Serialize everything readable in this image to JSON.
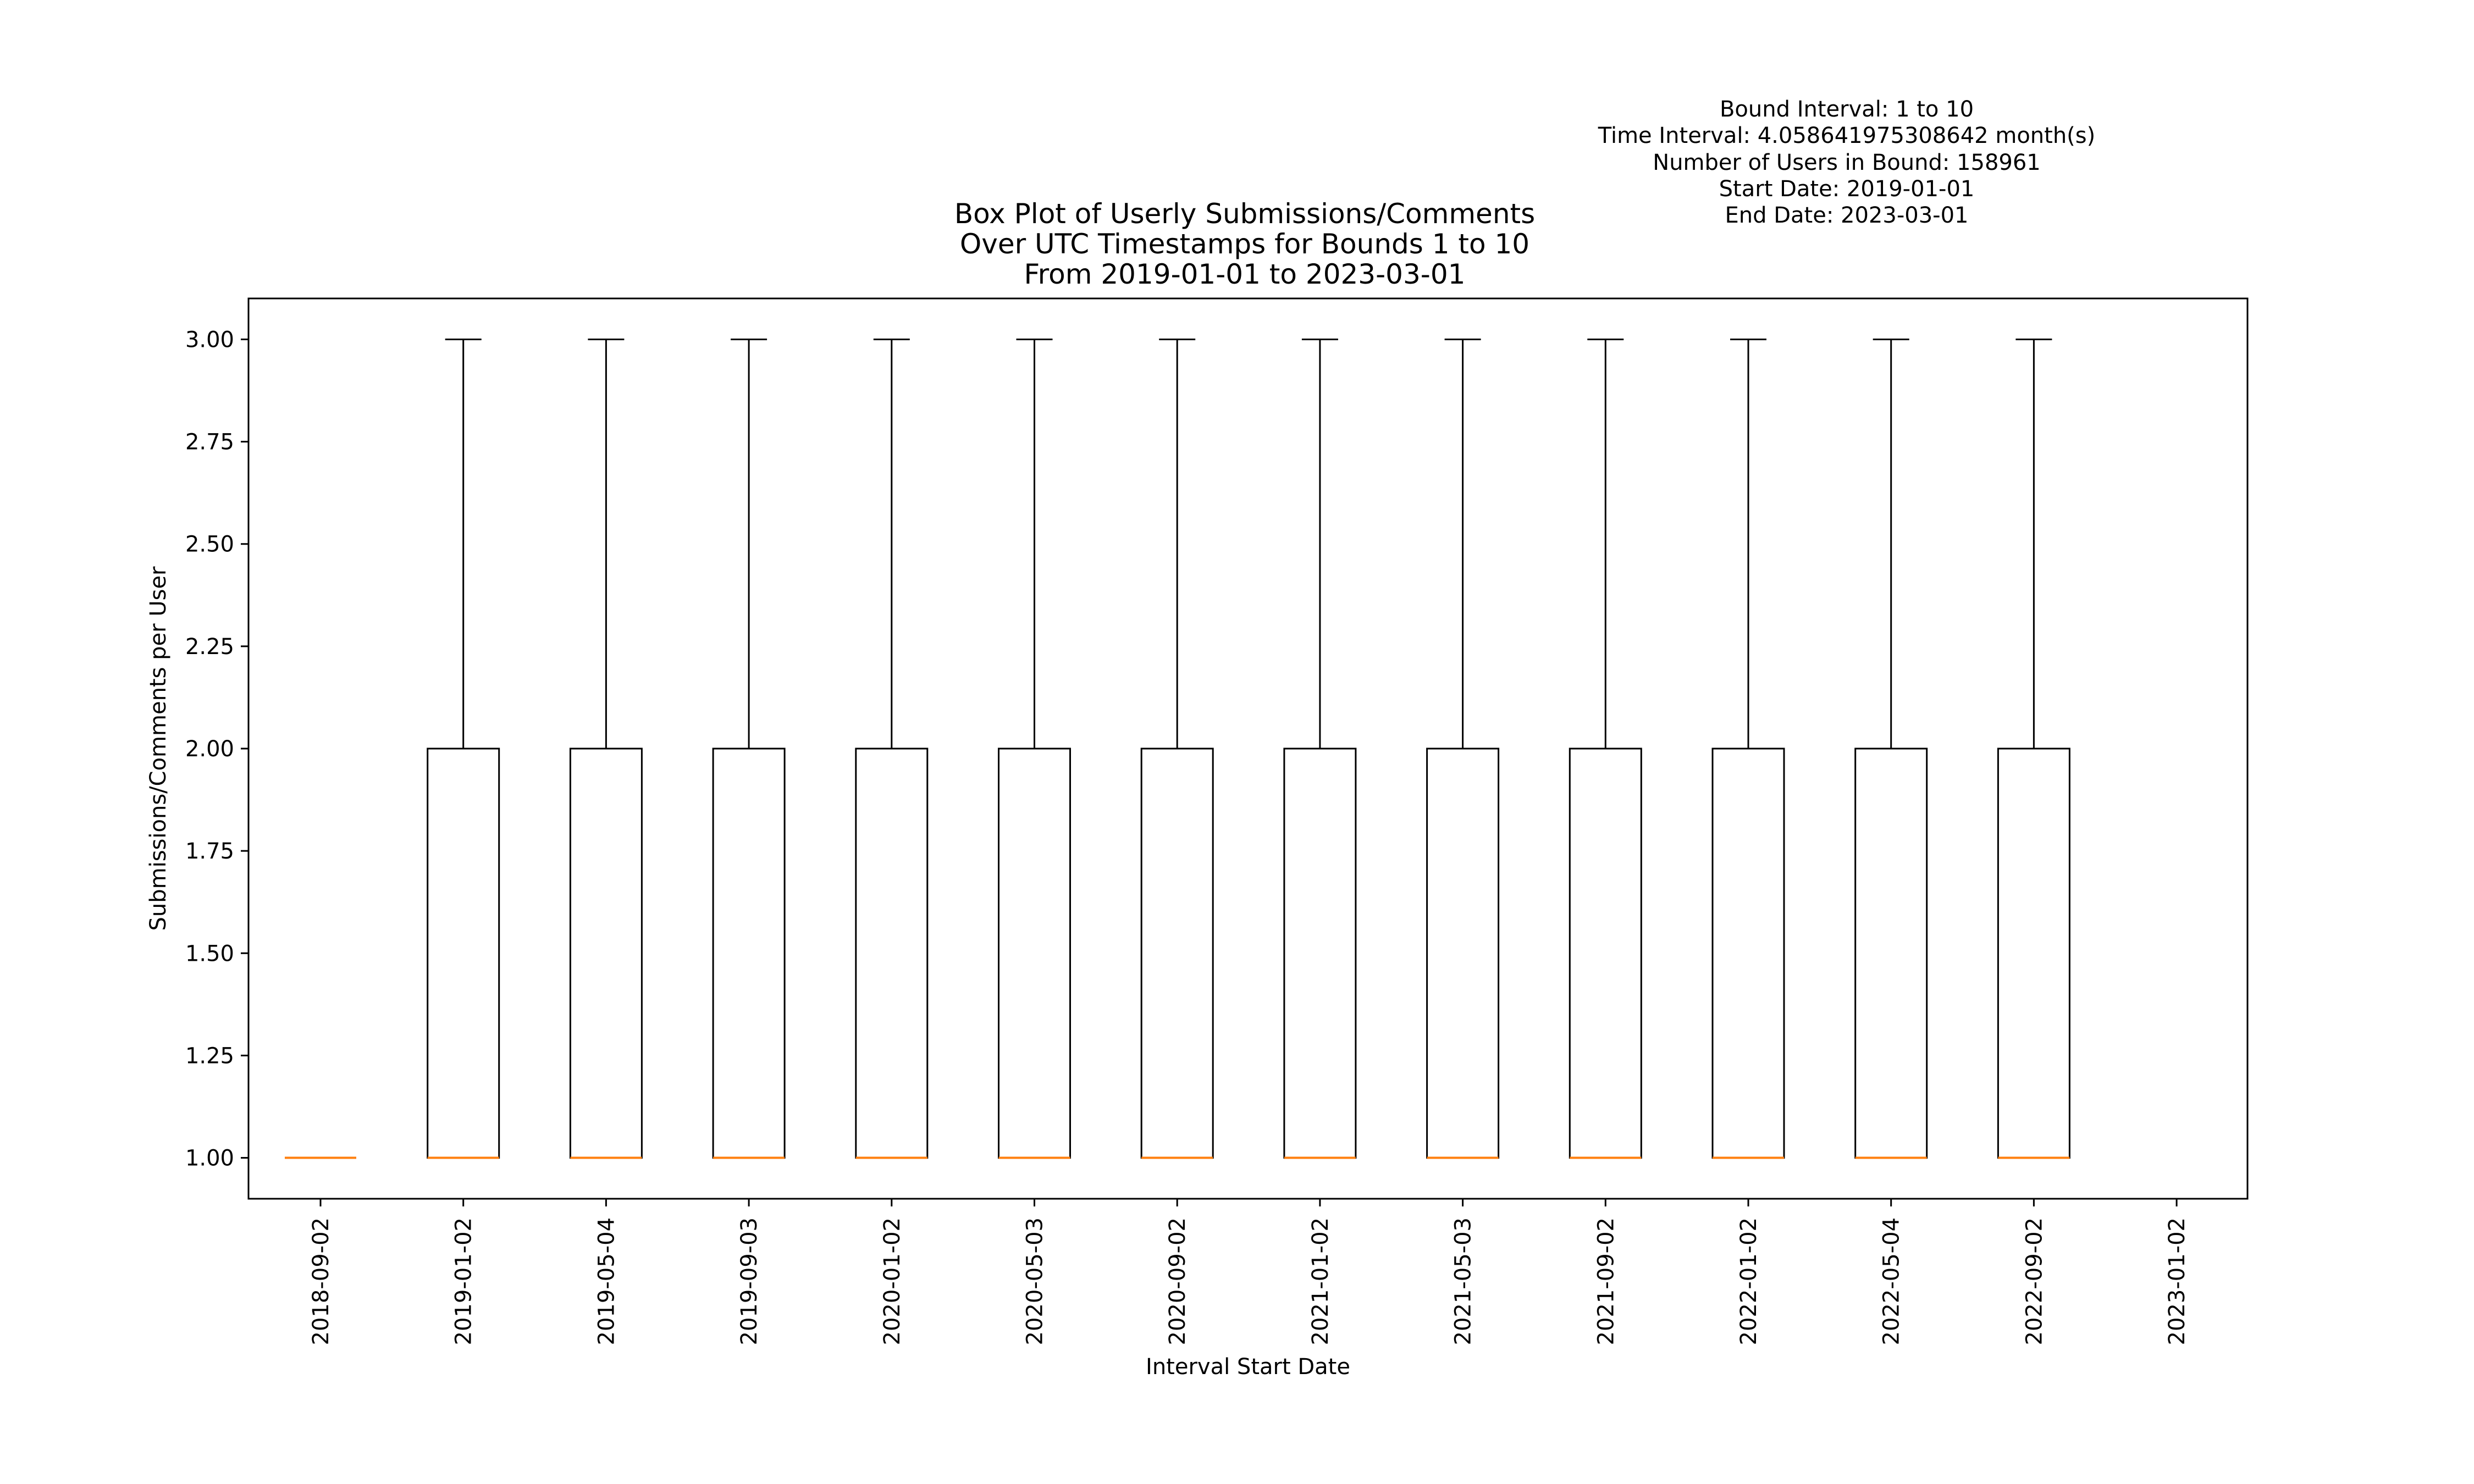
{
  "chart_data": {
    "type": "box",
    "title": [
      "Box Plot of Userly Submissions/Comments",
      "Over UTC Timestamps for Bounds 1 to 10",
      "From 2019-01-01 to 2023-03-01"
    ],
    "info": [
      "Bound Interval: 1 to 10",
      "Time Interval: 4.058641975308642 month(s)",
      "Number of Users in Bound: 158961",
      "Start Date: 2019-01-01",
      "End Date: 2023-03-01"
    ],
    "xlabel": "Interval Start Date",
    "ylabel": "Submissions/Comments per User",
    "categories": [
      "2018-09-02",
      "2019-01-02",
      "2019-05-04",
      "2019-09-03",
      "2020-01-02",
      "2020-05-03",
      "2020-09-02",
      "2021-01-02",
      "2021-05-03",
      "2021-09-02",
      "2022-01-02",
      "2022-05-04",
      "2022-09-02",
      "2023-01-02"
    ],
    "boxes": [
      {
        "x": "2018-09-02",
        "whislo": 1,
        "q1": 1,
        "med": 1,
        "q3": 1,
        "whishi": 1
      },
      {
        "x": "2019-01-02",
        "whislo": 1,
        "q1": 1,
        "med": 1,
        "q3": 2,
        "whishi": 3
      },
      {
        "x": "2019-05-04",
        "whislo": 1,
        "q1": 1,
        "med": 1,
        "q3": 2,
        "whishi": 3
      },
      {
        "x": "2019-09-03",
        "whislo": 1,
        "q1": 1,
        "med": 1,
        "q3": 2,
        "whishi": 3
      },
      {
        "x": "2020-01-02",
        "whislo": 1,
        "q1": 1,
        "med": 1,
        "q3": 2,
        "whishi": 3
      },
      {
        "x": "2020-05-03",
        "whislo": 1,
        "q1": 1,
        "med": 1,
        "q3": 2,
        "whishi": 3
      },
      {
        "x": "2020-09-02",
        "whislo": 1,
        "q1": 1,
        "med": 1,
        "q3": 2,
        "whishi": 3
      },
      {
        "x": "2021-01-02",
        "whislo": 1,
        "q1": 1,
        "med": 1,
        "q3": 2,
        "whishi": 3
      },
      {
        "x": "2021-05-03",
        "whislo": 1,
        "q1": 1,
        "med": 1,
        "q3": 2,
        "whishi": 3
      },
      {
        "x": "2021-09-02",
        "whislo": 1,
        "q1": 1,
        "med": 1,
        "q3": 2,
        "whishi": 3
      },
      {
        "x": "2022-01-02",
        "whislo": 1,
        "q1": 1,
        "med": 1,
        "q3": 2,
        "whishi": 3
      },
      {
        "x": "2022-05-04",
        "whislo": 1,
        "q1": 1,
        "med": 1,
        "q3": 2,
        "whishi": 3
      },
      {
        "x": "2022-09-02",
        "whislo": 1,
        "q1": 1,
        "med": 1,
        "q3": 2,
        "whishi": 3
      }
    ],
    "yticks": [
      "1.00",
      "1.25",
      "1.50",
      "1.75",
      "2.00",
      "2.25",
      "2.50",
      "2.75",
      "3.00"
    ],
    "ylim": [
      0.9,
      3.1
    ],
    "grid": false,
    "colors": {
      "box": "#000000",
      "median": "#ff7f0e"
    }
  }
}
